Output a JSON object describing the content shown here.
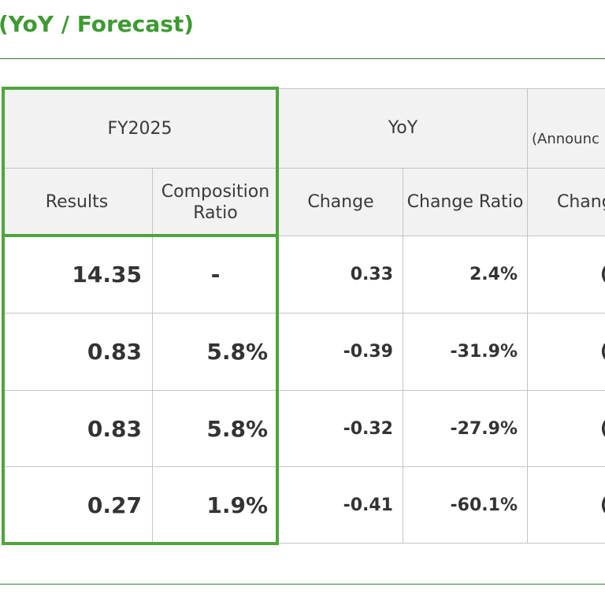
{
  "title": "(YoY / Forecast)",
  "table": {
    "group_headers": {
      "fy2025": "FY2025",
      "yoy": "YoY",
      "announced": "(Announc"
    },
    "sub_headers": {
      "results": "Results",
      "composition_ratio": "Composition Ratio",
      "change": "Change",
      "change_ratio": "Change Ratio",
      "announced_change": "Chang"
    },
    "rows": [
      {
        "results": "14.35",
        "composition_ratio": "-",
        "change": "0.33",
        "change_ratio": "2.4%",
        "announced_change": "("
      },
      {
        "results": "0.83",
        "composition_ratio": "5.8%",
        "change": "-0.39",
        "change_ratio": "-31.9%",
        "announced_change": "("
      },
      {
        "results": "0.83",
        "composition_ratio": "5.8%",
        "change": "-0.32",
        "change_ratio": "-27.9%",
        "announced_change": "("
      },
      {
        "results": "0.27",
        "composition_ratio": "1.9%",
        "change": "-0.41",
        "change_ratio": "-60.1%",
        "announced_change": "("
      }
    ]
  },
  "colors": {
    "title_green": "#3d9a32",
    "highlight_border": "#4ea53b",
    "header_bg": "#f2f2f2",
    "grid_line": "#c4c4c4"
  }
}
